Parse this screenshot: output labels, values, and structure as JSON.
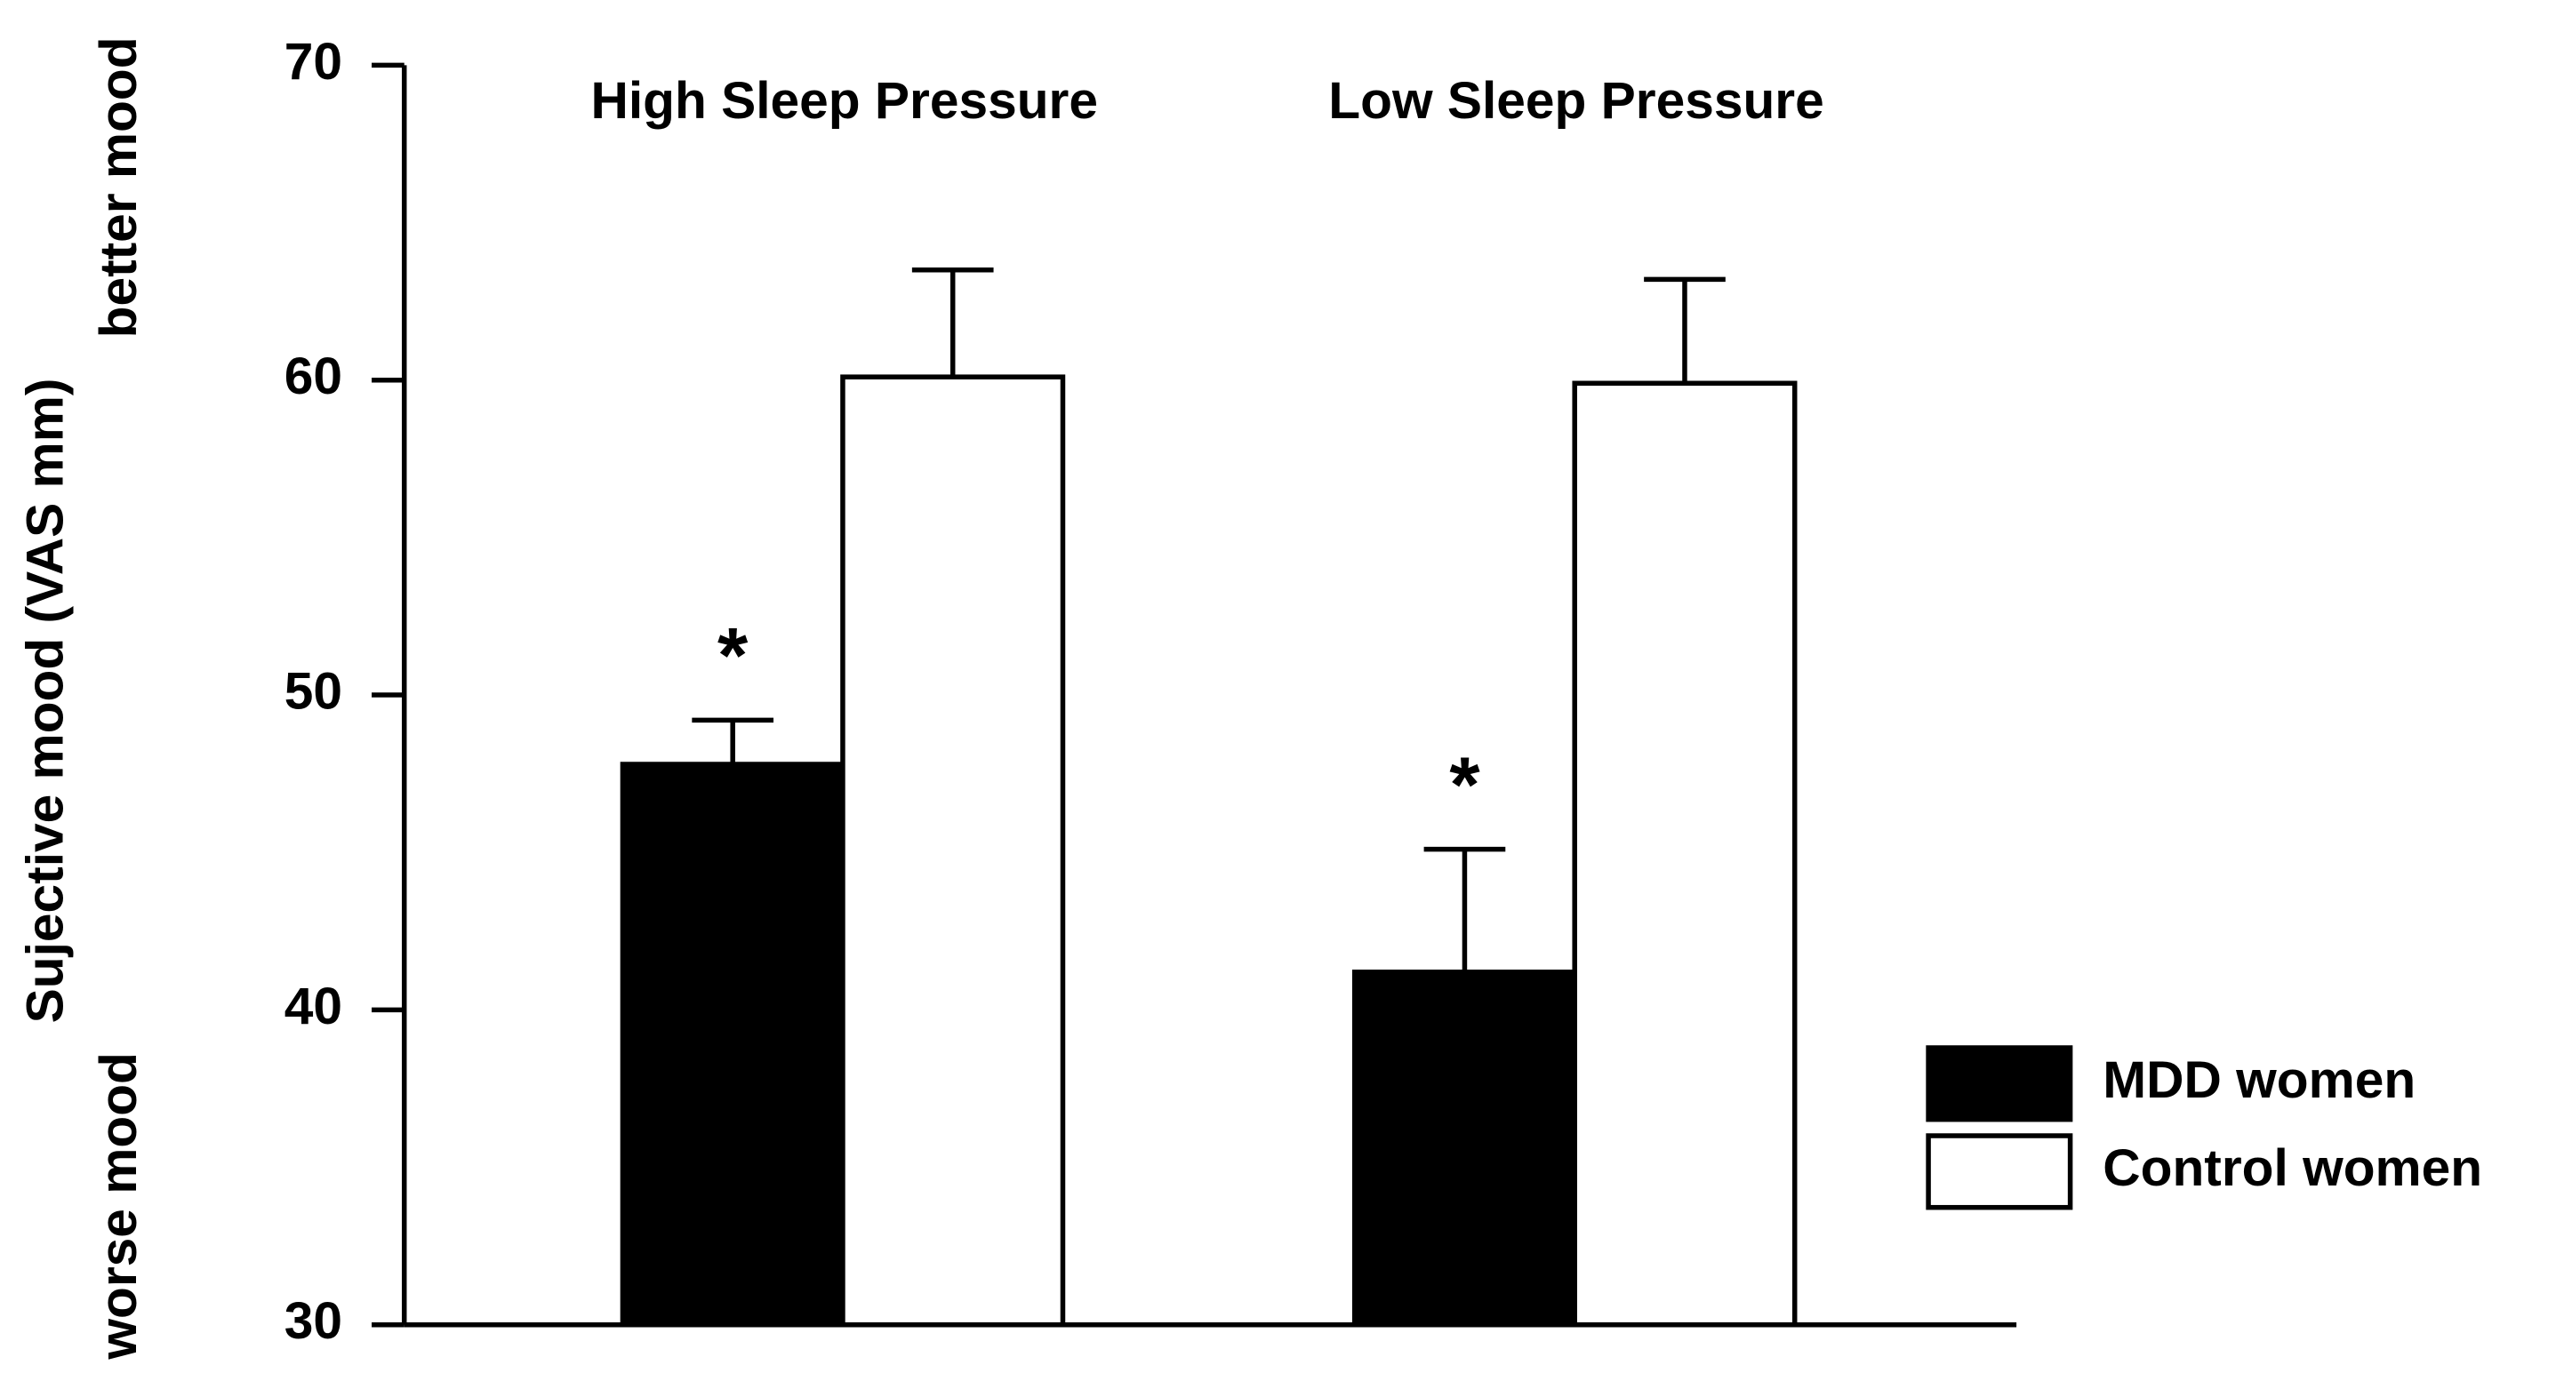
{
  "chart_data": {
    "type": "bar",
    "y_label": "Sujective mood (VAS mm)",
    "y_label_top": "better mood",
    "y_label_bottom": "worse mood",
    "categories": [
      "High Sleep Pressure",
      "Low Sleep Pressure"
    ],
    "series": [
      {
        "name": "MDD women",
        "color": "#000000",
        "values": [
          47.8,
          41.2
        ],
        "errors": [
          1.4,
          3.9
        ]
      },
      {
        "name": "Control women",
        "color": "#ffffff",
        "values": [
          60.1,
          59.9
        ],
        "errors": [
          3.4,
          3.3
        ]
      }
    ],
    "annotations": [
      "*",
      "*"
    ],
    "ylim": [
      30,
      70
    ],
    "yticks": [
      30,
      40,
      50,
      60,
      70
    ],
    "legend": "right"
  }
}
